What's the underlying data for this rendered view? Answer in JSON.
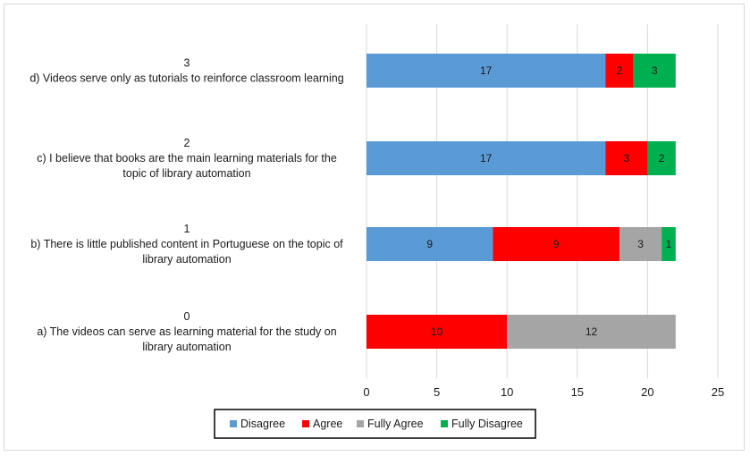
{
  "chart_data": {
    "type": "bar",
    "orientation": "horizontal",
    "stacked": true,
    "categories": [
      {
        "index": "0",
        "lines": [
          "a) The videos can serve as learning material for the study on",
          "library automation"
        ]
      },
      {
        "index": "1",
        "lines": [
          "b) There is little published content in Portuguese on the topic of",
          "library automation"
        ]
      },
      {
        "index": "2",
        "lines": [
          "c) I believe that books are the main learning materials for the",
          "topic of library automation"
        ]
      },
      {
        "index": "3",
        "lines": [
          "d) Videos serve only as tutorials to reinforce classroom learning"
        ]
      }
    ],
    "series": [
      {
        "name": "Disagree",
        "color": "#5b9bd5",
        "values": [
          0,
          9,
          17,
          17
        ]
      },
      {
        "name": "Agree",
        "color": "#ff0000",
        "values": [
          10,
          9,
          3,
          2
        ]
      },
      {
        "name": "Fully Agree",
        "color": "#a5a5a5",
        "values": [
          12,
          3,
          0,
          0
        ]
      },
      {
        "name": "Fully Disagree",
        "color": "#00b050",
        "values": [
          0,
          1,
          2,
          3
        ]
      }
    ],
    "xlim": [
      0,
      25
    ],
    "xticks": [
      "0",
      "5",
      "10",
      "15",
      "20",
      "25"
    ],
    "grid": "vertical",
    "legend": "bottom",
    "title": "",
    "xlabel": "",
    "ylabel": ""
  }
}
